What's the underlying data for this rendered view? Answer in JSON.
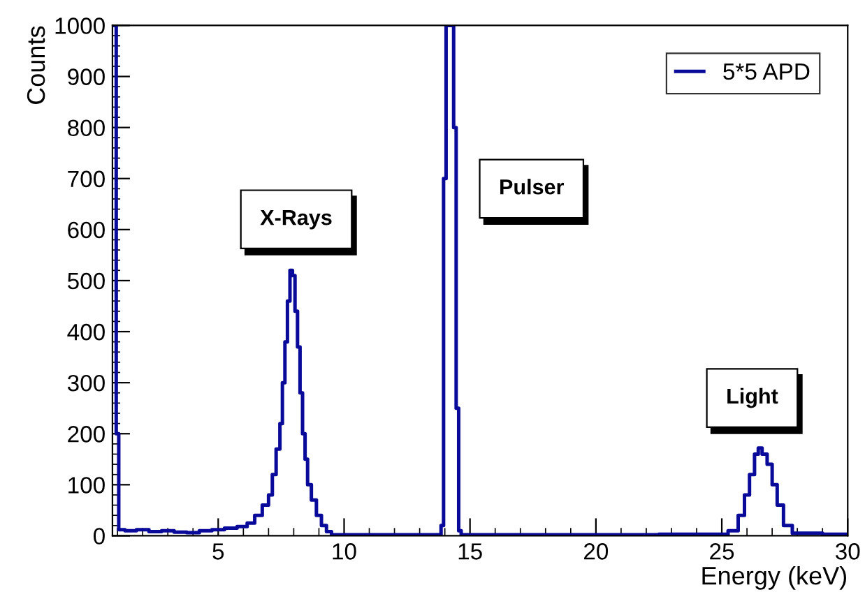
{
  "chart_data": {
    "type": "step",
    "xlabel": "Energy (keV)",
    "ylabel": "Counts",
    "xlim": [
      0.8,
      30
    ],
    "ylim": [
      0,
      1000
    ],
    "xticks": [
      5,
      10,
      15,
      20,
      25,
      30
    ],
    "yticks": [
      0,
      100,
      200,
      300,
      400,
      500,
      600,
      700,
      800,
      900,
      1000
    ],
    "grid": false,
    "legend": "top right",
    "marker": "none",
    "line_style": "solid",
    "annotations": [
      "X-Rays",
      "Pulser",
      "Light"
    ],
    "series": [
      {
        "name": "5*5 APD",
        "color": "#0a0a9a",
        "x": [
          0.8,
          0.9,
          1.0,
          1.1,
          1.5,
          2,
          2.5,
          3,
          3.5,
          4,
          4.5,
          5,
          5.5,
          6,
          6.3,
          6.6,
          6.9,
          7.1,
          7.2,
          7.4,
          7.5,
          7.6,
          7.7,
          7.8,
          7.9,
          8.0,
          8.1,
          8.2,
          8.3,
          8.4,
          8.5,
          8.6,
          8.8,
          9.0,
          9.2,
          9.4,
          9.6,
          10,
          12,
          13.8,
          13.9,
          14.0,
          14.1,
          14.3,
          14.4,
          14.5,
          14.6,
          14.7,
          20,
          25,
          25.5,
          25.8,
          26,
          26.2,
          26.4,
          26.5,
          26.7,
          26.9,
          27.1,
          27.3,
          27.6,
          28,
          30
        ],
        "values": [
          1000,
          1000,
          200,
          12,
          10,
          12,
          8,
          10,
          7,
          6,
          10,
          12,
          15,
          18,
          25,
          40,
          60,
          80,
          120,
          170,
          220,
          300,
          380,
          460,
          520,
          510,
          440,
          370,
          280,
          200,
          150,
          100,
          70,
          40,
          20,
          8,
          2,
          2,
          2,
          2,
          20,
          700,
          1000,
          1000,
          800,
          250,
          10,
          2,
          2,
          3,
          10,
          40,
          80,
          120,
          160,
          172,
          160,
          140,
          100,
          60,
          20,
          5,
          3
        ]
      }
    ]
  }
}
